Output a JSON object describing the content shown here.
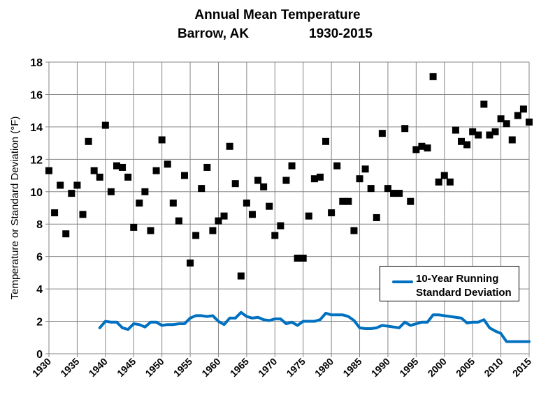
{
  "chart_data": {
    "type": "scatter",
    "title": "Annual Mean Temperature",
    "subtitle_location": "Barrow, AK",
    "subtitle_range": "1930-2015",
    "ylabel": "Temperature or Standard Deviation (°F)",
    "xlabel": "",
    "xlim": [
      1930,
      2015
    ],
    "ylim": [
      0,
      18
    ],
    "xticks": [
      1930,
      1935,
      1940,
      1945,
      1950,
      1955,
      1960,
      1965,
      1970,
      1975,
      1980,
      1985,
      1990,
      1995,
      2000,
      2005,
      2010,
      2015
    ],
    "yticks": [
      0,
      2,
      4,
      6,
      8,
      10,
      12,
      14,
      16,
      18
    ],
    "grid": true,
    "legend_placement": "lower-right",
    "colors": {
      "points": "#000000",
      "line": "#0070C0",
      "grid": "#868686"
    },
    "series": [
      {
        "type": "scatter",
        "x_start": 1930,
        "values": [
          11.3,
          8.7,
          10.4,
          7.4,
          9.9,
          10.4,
          8.6,
          13.1,
          11.3,
          10.9,
          14.1,
          10.0,
          11.6,
          11.5,
          10.9,
          7.8,
          9.3,
          10.0,
          7.6,
          11.3,
          13.2,
          11.7,
          9.3,
          8.2,
          11.0,
          5.6,
          7.3,
          10.2,
          11.5,
          7.6,
          8.2,
          8.5,
          12.8,
          10.5,
          4.8,
          9.3,
          8.6,
          10.7,
          10.3,
          9.1,
          7.3,
          7.9,
          10.7,
          11.6,
          5.9,
          5.9,
          8.5,
          10.8,
          10.9,
          13.1,
          8.7,
          11.6,
          9.4,
          9.4,
          7.6,
          10.8,
          11.4,
          10.2,
          8.4,
          13.6,
          10.2,
          9.9,
          9.9,
          13.9,
          9.4,
          12.6,
          12.8,
          12.7,
          17.1,
          10.6,
          11.0,
          10.6,
          13.8,
          13.1,
          12.9,
          13.7,
          13.5,
          15.4,
          13.5,
          13.7,
          14.5,
          14.2,
          13.2,
          14.7,
          15.1,
          14.3
        ]
      },
      {
        "type": "line",
        "name_line1": "10-Year Running",
        "name_line2": "Standard Deviation",
        "x_start": 1939,
        "values": [
          1.6,
          2.0,
          1.95,
          1.95,
          1.6,
          1.5,
          1.85,
          1.8,
          1.65,
          1.95,
          1.95,
          1.75,
          1.8,
          1.8,
          1.85,
          1.85,
          2.2,
          2.35,
          2.35,
          2.3,
          2.35,
          2.0,
          1.8,
          2.2,
          2.2,
          2.55,
          2.3,
          2.2,
          2.25,
          2.1,
          2.05,
          2.15,
          2.15,
          1.85,
          1.95,
          1.75,
          2.0,
          2.0,
          2.0,
          2.1,
          2.5,
          2.4,
          2.4,
          2.4,
          2.3,
          2.05,
          1.6,
          1.55,
          1.55,
          1.6,
          1.75,
          1.7,
          1.65,
          1.6,
          1.95,
          1.75,
          1.85,
          1.95,
          1.95,
          2.4,
          2.4,
          2.35,
          2.3,
          2.25,
          2.2,
          1.9,
          1.95,
          1.95,
          2.1,
          1.6,
          1.4,
          1.25,
          0.75,
          0.75,
          0.75,
          0.75,
          0.75
        ]
      }
    ]
  }
}
